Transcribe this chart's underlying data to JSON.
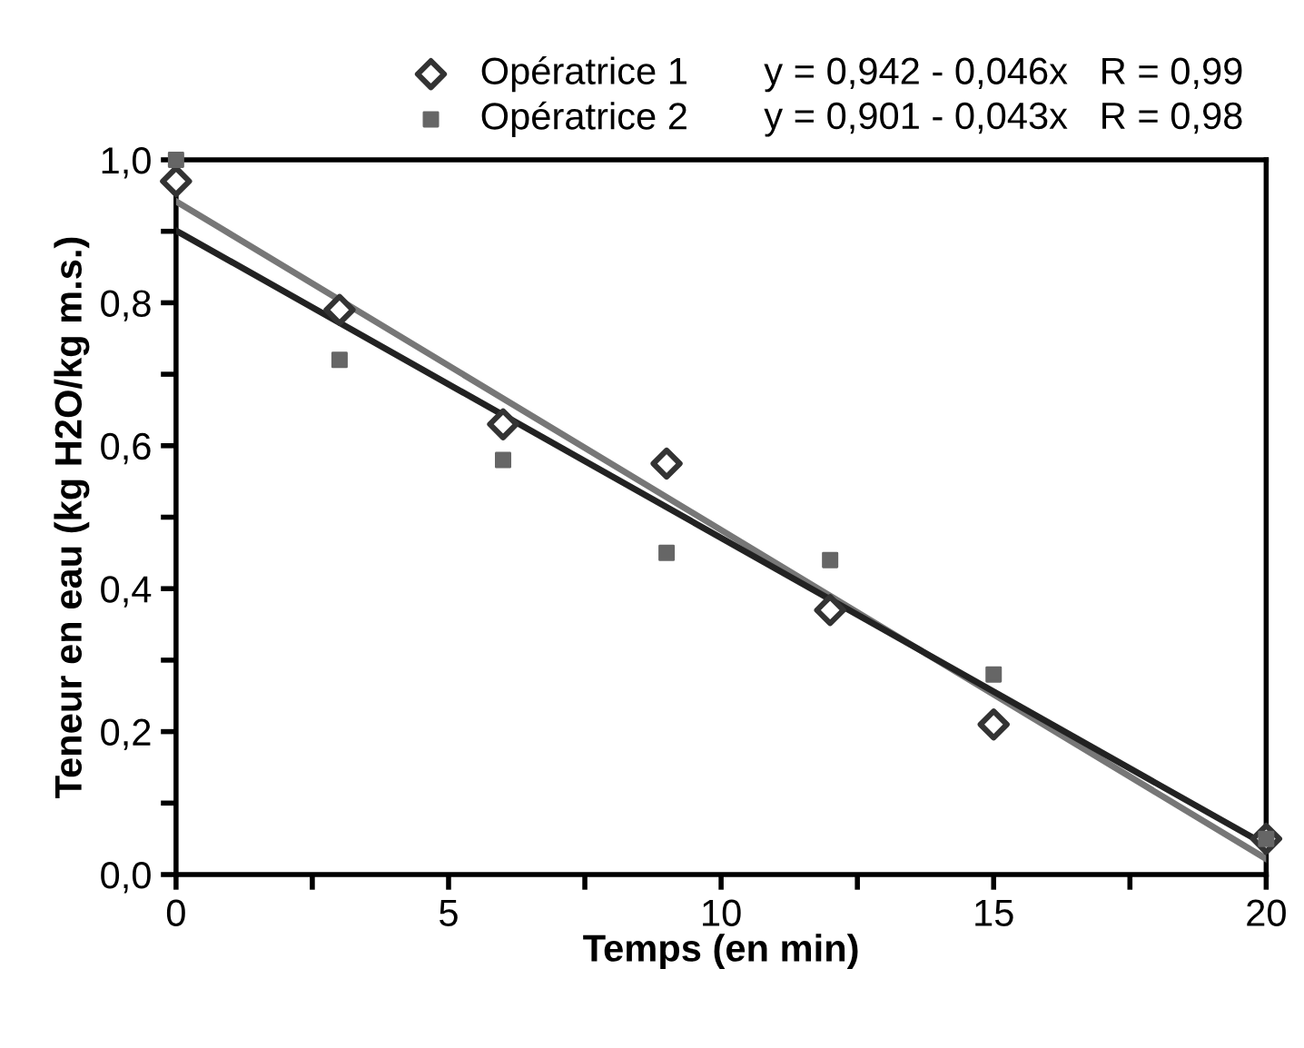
{
  "chart_data": {
    "type": "scatter",
    "xlabel": "Temps (en min)",
    "ylabel": "Teneur en eau (kg H2O/kg m.s.)",
    "xlim": [
      0,
      20
    ],
    "ylim": [
      0,
      1
    ],
    "xticks": [
      0,
      {
        "value": 2.5,
        "label": null
      },
      5,
      {
        "value": 7.5,
        "label": null
      },
      10,
      {
        "value": 12.5,
        "label": null
      },
      15,
      {
        "value": 17.5,
        "label": null
      },
      20
    ],
    "yticks": [
      {
        "value": 0,
        "label": "0,0"
      },
      {
        "value": 0.1,
        "label": null
      },
      {
        "value": 0.2,
        "label": "0,2"
      },
      {
        "value": 0.3,
        "label": null
      },
      {
        "value": 0.4,
        "label": "0,4"
      },
      {
        "value": 0.5,
        "label": null
      },
      {
        "value": 0.6,
        "label": "0,6"
      },
      {
        "value": 0.7,
        "label": null
      },
      {
        "value": 0.8,
        "label": "0,8"
      },
      {
        "value": 0.9,
        "label": null
      },
      {
        "value": 1,
        "label": "1,0"
      }
    ],
    "grid": false,
    "legend": "top",
    "annotations": [
      "y = 0,942 - 0,046x   R = 0,99",
      "y = 0,901 - 0,043x   R = 0,98"
    ],
    "series": [
      {
        "name": "Opératrice 1",
        "marker": "diamond",
        "color": "#333333",
        "x": [
          0,
          3,
          6,
          9,
          12,
          15,
          20
        ],
        "values": [
          0.97,
          0.79,
          0.63,
          0.575,
          0.37,
          0.21,
          0.05
        ]
      },
      {
        "name": "Opératrice 2",
        "marker": "square",
        "color": "#666666",
        "x": [
          0,
          3,
          6,
          9,
          12,
          15,
          20
        ],
        "values": [
          1.0,
          0.72,
          0.58,
          0.45,
          0.44,
          0.28,
          0.05
        ]
      },
      {
        "type": "line",
        "color": "#777777",
        "x": [
          0,
          20
        ],
        "values": [
          0.942,
          0.022
        ]
      },
      {
        "type": "line",
        "color": "#222222",
        "x": [
          0,
          20
        ],
        "values": [
          0.901,
          0.041
        ]
      }
    ]
  }
}
